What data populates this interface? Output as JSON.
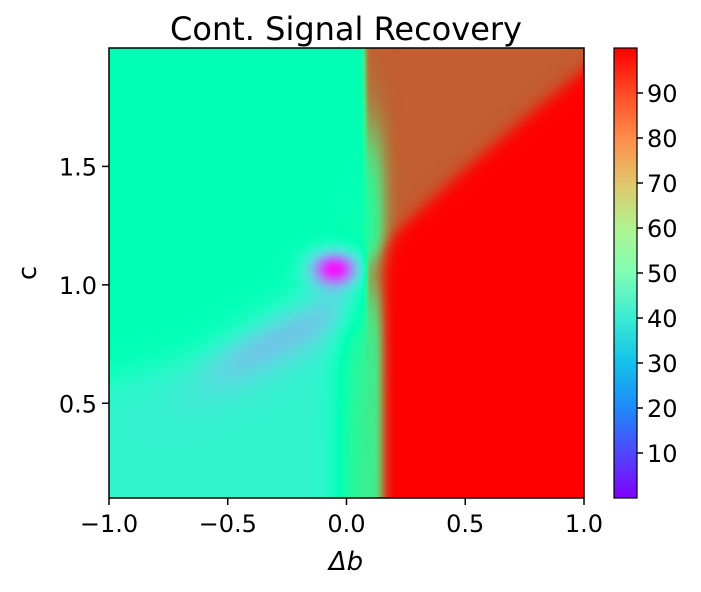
{
  "chart_data": {
    "type": "heatmap",
    "title": "Cont. Signal Recovery",
    "xlabel": "Δb",
    "ylabel": "c",
    "xlim": [
      -1.0,
      1.0
    ],
    "ylim": [
      0.1,
      2.0
    ],
    "x_ticks": [
      -1.0,
      -0.5,
      0.0,
      0.5,
      1.0
    ],
    "x_tick_labels": [
      "−1.0",
      "−0.5",
      "0.0",
      "0.5",
      "1.0"
    ],
    "y_ticks": [
      0.5,
      1.0,
      1.5
    ],
    "y_tick_labels": [
      "0.5",
      "1.0",
      "1.5"
    ],
    "colorbar": {
      "range": [
        0,
        100
      ],
      "ticks": [
        10,
        20,
        30,
        40,
        50,
        60,
        70,
        80,
        90
      ],
      "tick_labels": [
        "10",
        "20",
        "30",
        "40",
        "50",
        "60",
        "70",
        "80",
        "90"
      ],
      "colormap": "rainbow"
    },
    "grid": false,
    "regions": [
      {
        "region": "Δb < 0, c > ~0.8",
        "value": 50
      },
      {
        "region": "Δb < 0, c < ~0.6",
        "value": 40
      },
      {
        "region": "Δb ≈ -0.05, c ≈ 1.05 (minimum)",
        "value": 5
      },
      {
        "region": "Δb > 0.1, c < ~1.1",
        "value": 100
      },
      {
        "region": "Δb > 0.1, c > ~1.5",
        "value": 88
      },
      {
        "region": "Δb ≈ 0.05–0.15, c < 1.0 (transition band)",
        "value": 65
      }
    ]
  }
}
